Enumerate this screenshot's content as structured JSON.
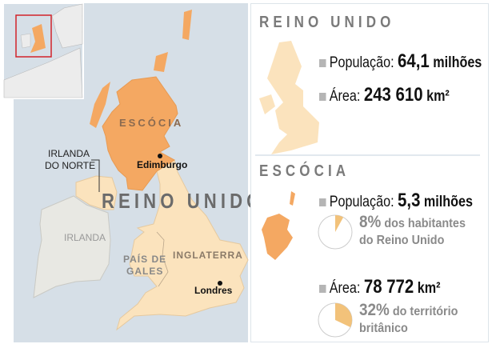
{
  "map": {
    "labels": {
      "scotland": "ESCÓCIA",
      "uk": "REINO UNIDO",
      "northern_ireland_1": "IRLANDA",
      "northern_ireland_2": "DO NORTE",
      "ireland": "IRLANDA",
      "wales_1": "PAÍS DE",
      "wales_2": "GALES",
      "england": "INGLATERRA",
      "edinburgh": "Edimburgo",
      "london": "Londres"
    },
    "colors": {
      "sea": "#d6dfe7",
      "scotland": "#f4a862",
      "uk": "#fbe3bd",
      "ireland": "#e8e8e3",
      "highlight_box": "#d2232a"
    }
  },
  "uk_panel": {
    "title": "REINO UNIDO",
    "population_label": "População:",
    "population_value": "64,1",
    "population_unit": "milhões",
    "area_label": "Área:",
    "area_value": "243 610",
    "area_unit": "km²"
  },
  "scotland_panel": {
    "title": "ESCÓCIA",
    "population_label": "População:",
    "population_value": "5,3",
    "population_unit": "milhões",
    "population_share": {
      "percent": 8,
      "value_text": "8%",
      "text_1": "dos habitantes",
      "text_2": "do Reino Unido"
    },
    "area_label": "Área:",
    "area_value": "78 772",
    "area_unit": "km²",
    "area_share": {
      "percent": 32,
      "value_text": "32%",
      "text_1": "do território",
      "text_2": "britânico"
    },
    "pie_color": "#f2c27a"
  }
}
